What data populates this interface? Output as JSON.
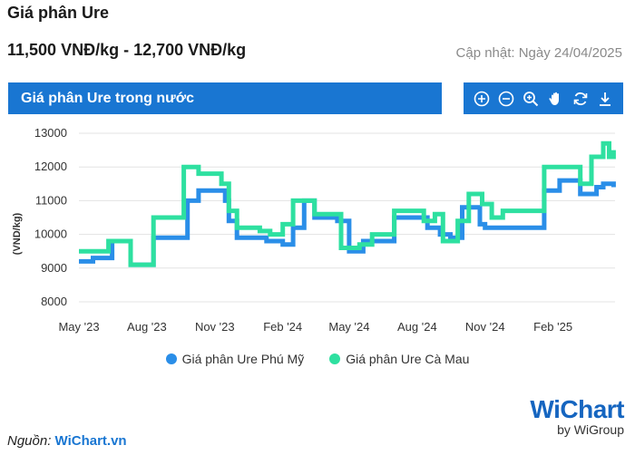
{
  "header": {
    "title": "Giá phân Ure",
    "price_range": "11,500 VNĐ/kg - 12,700 VNĐ/kg",
    "updated": "Cập nhật: Ngày 24/04/2025"
  },
  "panel": {
    "title": "Giá phân Ure trong nước"
  },
  "toolbar": {
    "icons": [
      "zoom-in-icon",
      "zoom-out-icon",
      "magnify-icon",
      "pan-hand-icon",
      "reset-icon",
      "download-icon"
    ]
  },
  "source": {
    "label": "Nguồn:",
    "link": "WiChart.vn"
  },
  "logo": {
    "text": "WiChart",
    "by": "by WiGroup"
  },
  "colors": {
    "accent": "#1976d2",
    "series1": "#2a8ee8",
    "series2": "#2ee0a0"
  },
  "chart_data": {
    "type": "line",
    "ylabel": "(VND/kg)",
    "ylim": [
      8000,
      13000
    ],
    "yticks": [
      8000,
      9000,
      10000,
      11000,
      12000,
      13000
    ],
    "xticks": [
      "May '23",
      "Aug '23",
      "Nov '23",
      "Feb '24",
      "May '24",
      "Aug '24",
      "Nov '24",
      "Feb '25"
    ],
    "grid": true,
    "legend_position": "bottom",
    "series": [
      {
        "name": "Giá phân Ure Phú Mỹ",
        "color": "#2a8ee8",
        "points": [
          [
            "2023-05-01",
            9200
          ],
          [
            "2023-05-20",
            9300
          ],
          [
            "2023-06-15",
            9800
          ],
          [
            "2023-07-10",
            9100
          ],
          [
            "2023-08-10",
            9900
          ],
          [
            "2023-09-25",
            11000
          ],
          [
            "2023-10-10",
            11300
          ],
          [
            "2023-11-15",
            11000
          ],
          [
            "2023-11-20",
            10400
          ],
          [
            "2023-12-01",
            9900
          ],
          [
            "2024-01-10",
            9800
          ],
          [
            "2024-02-01",
            9700
          ],
          [
            "2024-02-15",
            10200
          ],
          [
            "2024-03-01",
            11000
          ],
          [
            "2024-03-15",
            10500
          ],
          [
            "2024-04-15",
            10400
          ],
          [
            "2024-05-01",
            9500
          ],
          [
            "2024-05-20",
            9800
          ],
          [
            "2024-07-01",
            10500
          ],
          [
            "2024-08-15",
            10200
          ],
          [
            "2024-09-01",
            10000
          ],
          [
            "2024-09-15",
            9900
          ],
          [
            "2024-10-01",
            10800
          ],
          [
            "2024-10-25",
            10300
          ],
          [
            "2024-11-01",
            10200
          ],
          [
            "2025-01-10",
            10200
          ],
          [
            "2025-01-20",
            11300
          ],
          [
            "2025-02-10",
            11600
          ],
          [
            "2025-03-01",
            11600
          ],
          [
            "2025-03-10",
            11200
          ],
          [
            "2025-04-01",
            11400
          ],
          [
            "2025-04-10",
            11500
          ],
          [
            "2025-04-24",
            11400
          ]
        ]
      },
      {
        "name": "Giá phân Ure Cà Mau",
        "color": "#2ee0a0",
        "points": [
          [
            "2023-05-01",
            9500
          ],
          [
            "2023-06-10",
            9800
          ],
          [
            "2023-07-10",
            9100
          ],
          [
            "2023-08-10",
            10500
          ],
          [
            "2023-09-20",
            12000
          ],
          [
            "2023-10-10",
            11800
          ],
          [
            "2023-11-10",
            11500
          ],
          [
            "2023-11-20",
            10700
          ],
          [
            "2023-12-01",
            10200
          ],
          [
            "2024-01-01",
            10100
          ],
          [
            "2024-01-15",
            10000
          ],
          [
            "2024-02-01",
            10300
          ],
          [
            "2024-02-15",
            11000
          ],
          [
            "2024-03-15",
            10600
          ],
          [
            "2024-04-20",
            9600
          ],
          [
            "2024-05-15",
            9700
          ],
          [
            "2024-06-01",
            10000
          ],
          [
            "2024-07-01",
            10700
          ],
          [
            "2024-08-10",
            10400
          ],
          [
            "2024-08-25",
            10600
          ],
          [
            "2024-09-05",
            9800
          ],
          [
            "2024-09-25",
            10400
          ],
          [
            "2024-10-10",
            11200
          ],
          [
            "2024-10-28",
            10900
          ],
          [
            "2024-11-10",
            10500
          ],
          [
            "2024-11-25",
            10700
          ],
          [
            "2025-01-10",
            10700
          ],
          [
            "2025-01-20",
            12000
          ],
          [
            "2025-03-01",
            12000
          ],
          [
            "2025-03-10",
            11500
          ],
          [
            "2025-03-25",
            12300
          ],
          [
            "2025-04-10",
            12700
          ],
          [
            "2025-04-18",
            12300
          ],
          [
            "2025-04-24",
            12500
          ]
        ]
      }
    ]
  }
}
